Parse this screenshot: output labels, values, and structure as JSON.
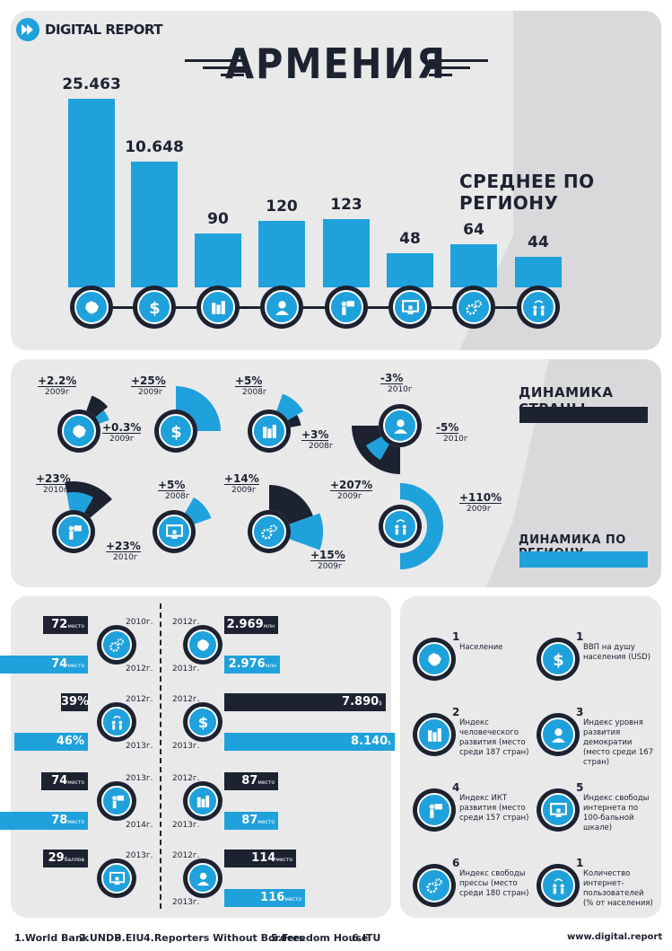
{
  "brand": {
    "name": "DIGITAL REPORT",
    "site": "www.digital.report"
  },
  "title": "АРМЕНИЯ",
  "regional_avg_label": "СРЕДНЕЕ ПО РЕГИОНУ",
  "bars": [
    {
      "value": "25.463",
      "icon": "map-icon"
    },
    {
      "value": "10.648",
      "icon": "dollar-icon"
    },
    {
      "value": "90",
      "icon": "books-icon"
    },
    {
      "value": "120",
      "icon": "person-icon"
    },
    {
      "value": "123",
      "icon": "presenter-icon"
    },
    {
      "value": "48",
      "icon": "monitor-lock-icon"
    },
    {
      "value": "64",
      "icon": "gears-icon"
    },
    {
      "value": "44",
      "icon": "people-wifi-icon"
    }
  ],
  "dynamics": {
    "country_label": "ДИНАМИКА СТРАНЫ",
    "region_label": "ДИНАМИКА ПО РЕГИОНУ",
    "items": [
      {
        "top": "+2.2%",
        "top_year": "2009г",
        "bottom": "+0.3%",
        "bottom_year": "2009г"
      },
      {
        "top": "+25%",
        "top_year": "2009г"
      },
      {
        "top": "+5%",
        "top_year": "2008г",
        "bottom": "+3%",
        "bottom_year": "2008г"
      },
      {
        "top": "-3%",
        "top_year": "2010г",
        "bottom": "-5%",
        "bottom_year": "2010г"
      },
      {
        "top": "+23%",
        "top_year": "2010г",
        "bottom": "+23%",
        "bottom_year": "2010г"
      },
      {
        "top": "+5%",
        "top_year": "2008г"
      },
      {
        "top": "+14%",
        "top_year": "2009г",
        "bottom": "+15%",
        "bottom_year": "2009г"
      },
      {
        "top": "+207%",
        "top_year": "2009г",
        "bottom": "+110%",
        "bottom_year": "2009г"
      }
    ]
  },
  "rankings": {
    "left": [
      {
        "top": "72",
        "top_unit": "место",
        "top_year": "2010г.",
        "bottom": "74",
        "bottom_unit": "место",
        "bottom_year": "2012г."
      },
      {
        "top": "39%",
        "top_unit": "",
        "top_year": "2012г.",
        "bottom": "46%",
        "bottom_unit": "",
        "bottom_year": "2013г."
      },
      {
        "top": "74",
        "top_unit": "место",
        "top_year": "2013г.",
        "bottom": "78",
        "bottom_unit": "место",
        "bottom_year": "2014г."
      },
      {
        "top": "29",
        "top_unit": "баллов",
        "top_year": "2013г.",
        "bottom": "",
        "bottom_unit": "",
        "bottom_year": ""
      }
    ],
    "right": [
      {
        "top_year": "2012г.",
        "top": "2.969",
        "top_unit": "млн",
        "bottom_year": "2013г.",
        "bottom": "2.976",
        "bottom_unit": "млн"
      },
      {
        "top_year": "2012г.",
        "top": "7.890",
        "top_unit": "$",
        "bottom_year": "2013г.",
        "bottom": "8.140",
        "bottom_unit": "$"
      },
      {
        "top_year": "2012г.",
        "top": "87",
        "top_unit": "место",
        "bottom_year": "2013г.",
        "bottom": "87",
        "bottom_unit": "место"
      },
      {
        "top_year": "2012г.",
        "top": "114",
        "top_unit": "место",
        "bottom_year": "2013г.",
        "bottom": "116",
        "bottom_unit": "место"
      }
    ]
  },
  "legend": [
    {
      "num": "1",
      "text": "Население"
    },
    {
      "num": "1",
      "text": "ВВП на душу населения (USD)"
    },
    {
      "num": "2",
      "text": "Индекс человеческого развития (место среди 187 стран)"
    },
    {
      "num": "3",
      "text": "Индекс уровня развития демократии (место среди 167 стран)"
    },
    {
      "num": "4",
      "text": "Индекс ИКТ развития (место среди 157 стран)"
    },
    {
      "num": "5",
      "text": "Индекс свободы интернета по 100-бальной шкале)"
    },
    {
      "num": "6",
      "text": "Индекс свободы прессы (место среди 180 стран)"
    },
    {
      "num": "1",
      "text": "Количество интернет-пользователей (% от населения)"
    }
  ],
  "sources": [
    "1.World Bank",
    "2.UNDP",
    "3.EIU",
    "4.Reporters Without Borders",
    "5.Freedom House",
    "6.ITU"
  ],
  "colors": {
    "blue": "#1fa1dc",
    "dark": "#1c2230",
    "panel": "#e9e9ea"
  }
}
